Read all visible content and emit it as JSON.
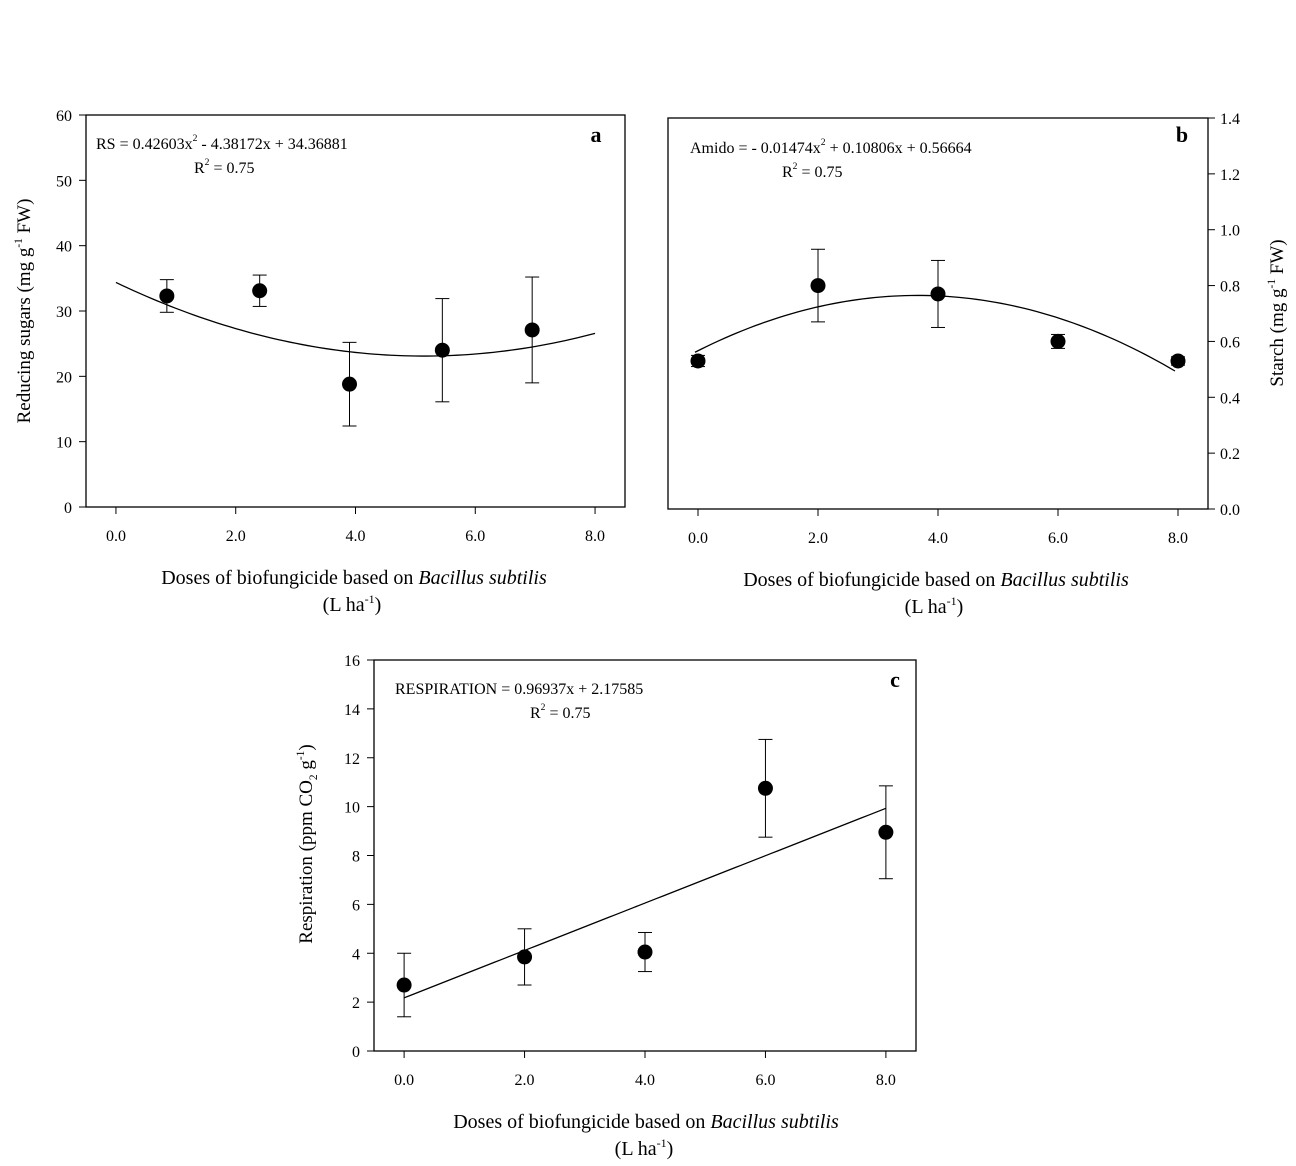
{
  "chart_data": [
    {
      "panel": "a",
      "type": "scatter",
      "ylabel_parts": [
        "Reducing sugars (mg g",
        "-1",
        " FW)"
      ],
      "xlabel_main": "Doses of biofungicide based on ",
      "xlabel_italic": "Bacillus subtilis",
      "xlabel_unit_parts": [
        "(L ha",
        "-1",
        ")"
      ],
      "equation_parts": [
        "RS = 0.42603x",
        "2",
        " - 4.38172x + 34.36881"
      ],
      "r2_parts": [
        "R",
        "2",
        " = 0.75"
      ],
      "xlim": [
        -0.5,
        8.5
      ],
      "ylim": [
        0,
        60
      ],
      "xticks": [
        0,
        2,
        4,
        6,
        8
      ],
      "xtick_labels": [
        "0.0",
        "2.0",
        "4.0",
        "6.0",
        "8.0"
      ],
      "yticks": [
        0,
        10,
        20,
        30,
        40,
        50,
        60
      ],
      "ytick_labels": [
        "0",
        "10",
        "20",
        "30",
        "40",
        "50",
        "60"
      ],
      "y_axis_side": "left",
      "points": [
        {
          "x": 0.85,
          "y": 32.3,
          "err": 2.5
        },
        {
          "x": 2.4,
          "y": 33.1,
          "err": 2.4
        },
        {
          "x": 3.9,
          "y": 18.8,
          "err": 6.4
        },
        {
          "x": 5.45,
          "y": 24.0,
          "err": 7.9
        },
        {
          "x": 6.95,
          "y": 27.1,
          "err": 8.1
        }
      ],
      "fit": {
        "kind": "poly2",
        "coeffs": [
          0.42603,
          -4.38172,
          34.36881
        ],
        "x_range": [
          0,
          8
        ]
      }
    },
    {
      "panel": "b",
      "type": "scatter",
      "ylabel_parts": [
        "Starch (mg g",
        "-1",
        " FW)"
      ],
      "xlabel_main": "Doses of biofungicide based on ",
      "xlabel_italic": "Bacillus subtilis",
      "xlabel_unit_parts": [
        "(L ha",
        "-1",
        ")"
      ],
      "equation_parts": [
        "Amido = - 0.01474x",
        "2",
        " + 0.10806x + 0.56664"
      ],
      "r2_parts": [
        "R",
        "2",
        " = 0.75"
      ],
      "xlim": [
        -0.5,
        8.5
      ],
      "ylim": [
        0,
        1.4
      ],
      "xticks": [
        0,
        2,
        4,
        6,
        8
      ],
      "xtick_labels": [
        "0.0",
        "2.0",
        "4.0",
        "6.0",
        "8.0"
      ],
      "yticks": [
        0,
        0.2,
        0.4,
        0.6,
        0.8,
        1.0,
        1.2,
        1.4
      ],
      "ytick_labels": [
        "0.0",
        "0.2",
        "0.4",
        "0.6",
        "0.8",
        "1.0",
        "1.2",
        "1.4"
      ],
      "y_axis_side": "right",
      "points": [
        {
          "x": 0,
          "y": 0.53,
          "err": 0.02
        },
        {
          "x": 2,
          "y": 0.8,
          "err": 0.13
        },
        {
          "x": 4,
          "y": 0.77,
          "err": 0.12
        },
        {
          "x": 6,
          "y": 0.6,
          "err": 0.025
        },
        {
          "x": 8,
          "y": 0.53,
          "err": 0.015
        }
      ],
      "fit": {
        "kind": "poly2",
        "coeffs": [
          -0.01474,
          0.10806,
          0.56664
        ],
        "x_range": [
          -0.05,
          7.95
        ]
      }
    },
    {
      "panel": "c",
      "type": "scatter",
      "ylabel_parts": [
        "Respiration (ppm CO",
        "2",
        " g",
        "-1",
        ")"
      ],
      "xlabel_main": "Doses of biofungicide based on ",
      "xlabel_italic": "Bacillus subtilis",
      "xlabel_unit_parts": [
        "(L ha",
        "-1",
        ")"
      ],
      "equation_parts": [
        "RESPIRATION = 0.96937x + 2.17585"
      ],
      "r2_parts": [
        "R",
        "2",
        " = 0.75"
      ],
      "xlim": [
        -0.5,
        8.5
      ],
      "ylim": [
        0,
        16
      ],
      "xticks": [
        0,
        2,
        4,
        6,
        8
      ],
      "xtick_labels": [
        "0.0",
        "2.0",
        "4.0",
        "6.0",
        "8.0"
      ],
      "yticks": [
        0,
        2,
        4,
        6,
        8,
        10,
        12,
        14,
        16
      ],
      "ytick_labels": [
        "0",
        "2",
        "4",
        "6",
        "8",
        "10",
        "12",
        "14",
        "16"
      ],
      "y_axis_side": "left",
      "points": [
        {
          "x": 0,
          "y": 2.7,
          "err": 1.3
        },
        {
          "x": 2,
          "y": 3.85,
          "err": 1.15
        },
        {
          "x": 4,
          "y": 4.05,
          "err": 0.8
        },
        {
          "x": 6,
          "y": 10.75,
          "err": 2.0
        },
        {
          "x": 8,
          "y": 8.95,
          "err": 1.9
        }
      ],
      "fit": {
        "kind": "linear",
        "coeffs": [
          0.96937,
          2.17585
        ],
        "x_range": [
          0,
          8
        ]
      }
    }
  ]
}
